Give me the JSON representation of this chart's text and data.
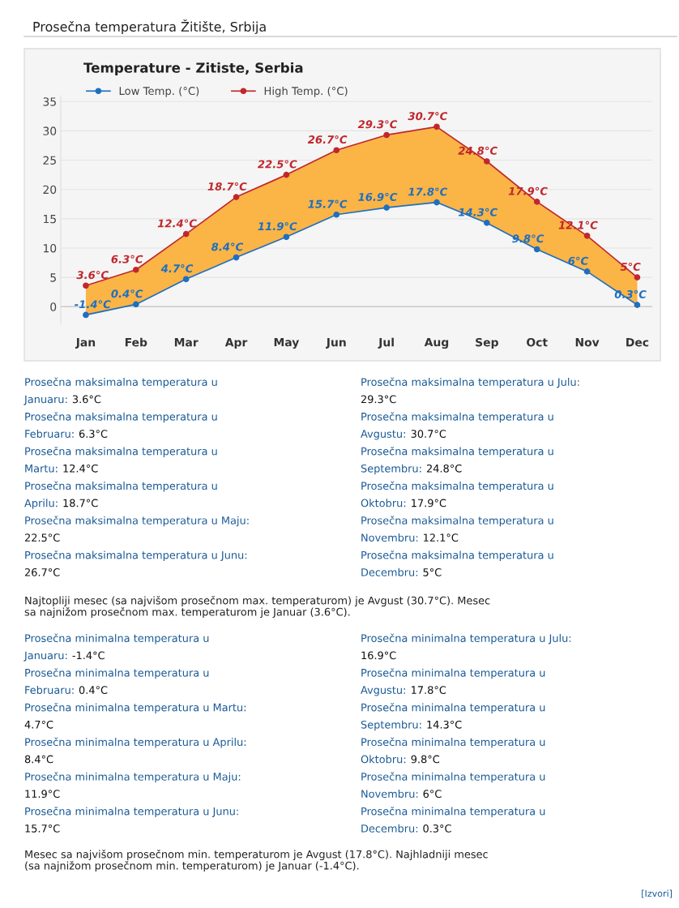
{
  "chart_data": {
    "type": "line",
    "title": "Prosečna temperatura Žitište, Srbija",
    "subtitle": "Temperature - Zitiste, Serbia",
    "categories": [
      "Jan",
      "Feb",
      "Mar",
      "Apr",
      "May",
      "Jun",
      "Jul",
      "Aug",
      "Sep",
      "Oct",
      "Nov",
      "Dec"
    ],
    "series": [
      {
        "name": "Low Temp. (°C)",
        "color": "#1f6fbf",
        "values": [
          -1.4,
          0.4,
          4.7,
          8.4,
          11.9,
          15.7,
          16.9,
          17.8,
          14.3,
          9.8,
          6,
          0.3
        ],
        "value_labels": [
          "-1.4°C",
          "0.4°C",
          "4.7°C",
          "8.4°C",
          "11.9°C",
          "15.7°C",
          "16.9°C",
          "17.8°C",
          "14.3°C",
          "9.8°C",
          "6°C",
          "0.3°C"
        ]
      },
      {
        "name": "High Temp. (°C)",
        "color": "#c0282d",
        "values": [
          3.6,
          6.3,
          12.4,
          18.7,
          22.5,
          26.7,
          29.3,
          30.7,
          24.8,
          17.9,
          12.1,
          5
        ],
        "value_labels": [
          "3.6°C",
          "6.3°C",
          "12.4°C",
          "18.7°C",
          "22.5°C",
          "26.7°C",
          "29.3°C",
          "30.7°C",
          "24.8°C",
          "17.9°C",
          "12.1°C",
          "5°C"
        ],
        "lower": [
          -1.4,
          0.4,
          4.7,
          8.4,
          11.9,
          15.7,
          16.9,
          17.8,
          14.3,
          9.8,
          6,
          0.3
        ],
        "upper": [
          3.6,
          6.3,
          12.4,
          18.7,
          22.5,
          26.7,
          29.3,
          30.7,
          24.8,
          17.9,
          12.1,
          5
        ]
      }
    ],
    "ylim": [
      -3,
      36
    ],
    "yticks": [
      0,
      5,
      10,
      15,
      20,
      25,
      30,
      35
    ],
    "grid": "y",
    "legend": "top left",
    "marker": "circle",
    "line_style": "solid",
    "annotations": [
      "Prosečna maksimalna temperatura u\nJanuaru: 3.6°C",
      "Prosečna maksimalna temperatura u\nFebruaru: 6.3°C",
      "Prosečna maksimalna temperatura u\nMartu: 12.4°C",
      "Prosečna maksimalna temperatura u\nAprilu: 18.7°C",
      "Prosečna maksimalna temperatura u Maju:\n22.5°C",
      "Prosečna maksimalna temperatura u Junu:\n26.7°C",
      "Prosečna maksimalna temperatura u Julu:\n29.3°C",
      "Prosečna maksimalna temperatura u\nAvgustu: 30.7°C",
      "Prosečna maksimalna temperatura u\nSeptembru: 24.8°C",
      "Prosečna maksimalna temperatura u\nOktobru: 17.9°C",
      "Prosečna maksimalna temperatura u\nNovembru: 12.1°C",
      "Prosečna maksimalna temperatura u\nDecembru: 5°C",
      "Najtopliji mesec (sa najvišom prosečnom max. temperaturom) je Avgust (30.7°C). Mesec\nsa najnižom prosečnom max. temperaturom je Januar (3.6°C).",
      "Prosečna minimalna temperatura u\nJanuaru: -1.4°C",
      "Prosečna minimalna temperatura u\nFebruaru: 0.4°C",
      "Prosečna minimalna temperatura u Martu:\n4.7°C",
      "Prosečna minimalna temperatura u Aprilu:\n8.4°C",
      "Prosečna minimalna temperatura u Maju:\n11.9°C",
      "Prosečna minimalna temperatura u Junu:\n15.7°C",
      "Prosečna minimalna temperatura u Julu:\n16.9°C",
      "Prosečna minimalna temperatura u\nAvgustu: 17.8°C",
      "Prosečna minimalna temperatura u\nSeptembru: 14.3°C",
      "Prosečna minimalna temperatura u\nOktobru: 9.8°C",
      "Prosečna minimalna temperatura u\nNovembru: 6°C",
      "Prosečna minimalna temperatura u\nDecembru: 0.3°C",
      "Mesec sa najvišom prosečnom min. temperaturom je Avgust (17.8°C). Najhladniji mesec\n(sa najnižom prosečnom min. temperaturom) je Januar (-1.4°C).",
      "[Izvori]"
    ]
  }
}
